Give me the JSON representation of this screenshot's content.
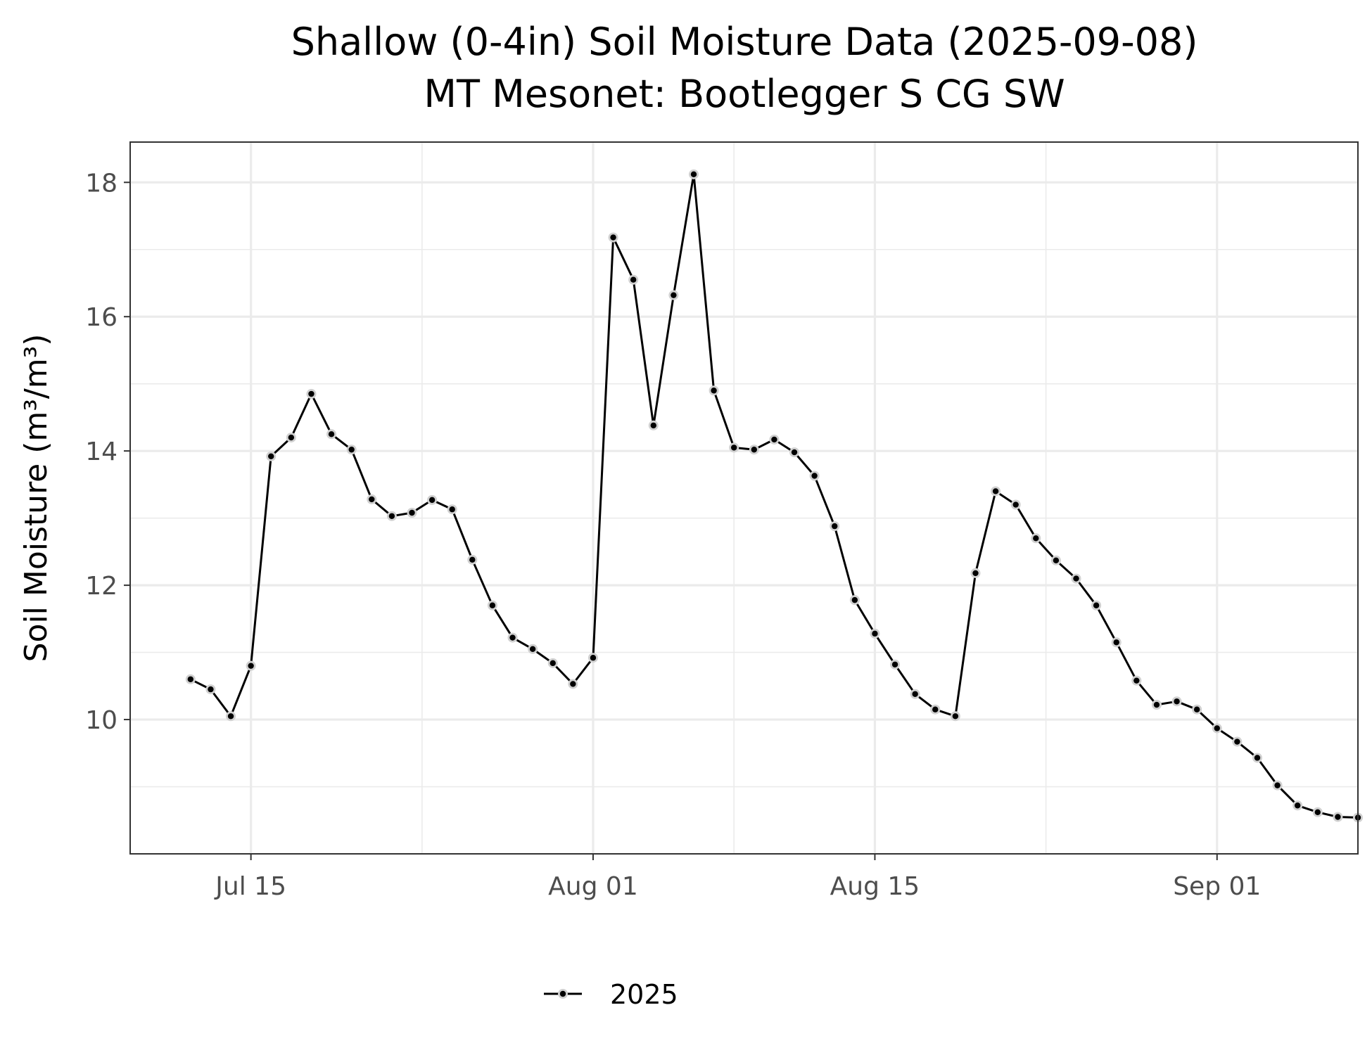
{
  "chart_data": {
    "type": "line",
    "title": "Shallow (0-4in) Soil Moisture Data (2025-09-08)",
    "subtitle": "MT Mesonet: Bootlegger S CG SW",
    "xlabel": "",
    "ylabel": "Soil Moisture (m³/m³)",
    "xlim": [
      "2025-07-09",
      "2025-09-08"
    ],
    "ylim": [
      8.0,
      18.6
    ],
    "x_ticks": [
      {
        "label": "Jul 15",
        "date": "2025-07-15"
      },
      {
        "label": "Aug 01",
        "date": "2025-08-01"
      },
      {
        "label": "Aug 15",
        "date": "2025-08-15"
      },
      {
        "label": "Sep 01",
        "date": "2025-09-01"
      }
    ],
    "y_ticks": [
      10,
      12,
      14,
      16,
      18
    ],
    "grid": true,
    "legend_position": "bottom",
    "series": [
      {
        "name": "2025",
        "color": "#000000",
        "x": [
          "2025-07-12",
          "2025-07-13",
          "2025-07-14",
          "2025-07-15",
          "2025-07-16",
          "2025-07-17",
          "2025-07-18",
          "2025-07-19",
          "2025-07-20",
          "2025-07-21",
          "2025-07-22",
          "2025-07-23",
          "2025-07-24",
          "2025-07-25",
          "2025-07-26",
          "2025-07-27",
          "2025-07-28",
          "2025-07-29",
          "2025-07-30",
          "2025-07-31",
          "2025-08-01",
          "2025-08-02",
          "2025-08-03",
          "2025-08-04",
          "2025-08-05",
          "2025-08-06",
          "2025-08-07",
          "2025-08-08",
          "2025-08-09",
          "2025-08-10",
          "2025-08-11",
          "2025-08-12",
          "2025-08-13",
          "2025-08-14",
          "2025-08-15",
          "2025-08-16",
          "2025-08-17",
          "2025-08-18",
          "2025-08-19",
          "2025-08-20",
          "2025-08-21",
          "2025-08-22",
          "2025-08-23",
          "2025-08-24",
          "2025-08-25",
          "2025-08-26",
          "2025-08-27",
          "2025-08-28",
          "2025-08-29",
          "2025-08-30",
          "2025-08-31",
          "2025-09-01",
          "2025-09-02",
          "2025-09-03",
          "2025-09-04",
          "2025-09-05",
          "2025-09-06",
          "2025-09-07",
          "2025-09-08"
        ],
        "values": [
          10.6,
          10.45,
          10.05,
          10.8,
          13.92,
          14.2,
          14.85,
          14.25,
          14.02,
          13.28,
          13.03,
          13.08,
          13.27,
          13.13,
          12.38,
          11.7,
          11.22,
          11.05,
          10.84,
          10.53,
          10.92,
          17.18,
          16.55,
          14.38,
          16.32,
          18.12,
          14.9,
          14.05,
          14.02,
          14.17,
          13.98,
          13.63,
          12.88,
          11.78,
          11.28,
          10.82,
          10.38,
          10.15,
          10.05,
          12.18,
          13.4,
          13.2,
          12.7,
          12.37,
          12.1,
          11.7,
          11.15,
          10.58,
          10.22,
          10.27,
          10.15,
          9.87,
          9.67,
          9.43,
          9.02,
          8.72,
          8.62,
          8.55,
          8.54
        ]
      }
    ]
  }
}
